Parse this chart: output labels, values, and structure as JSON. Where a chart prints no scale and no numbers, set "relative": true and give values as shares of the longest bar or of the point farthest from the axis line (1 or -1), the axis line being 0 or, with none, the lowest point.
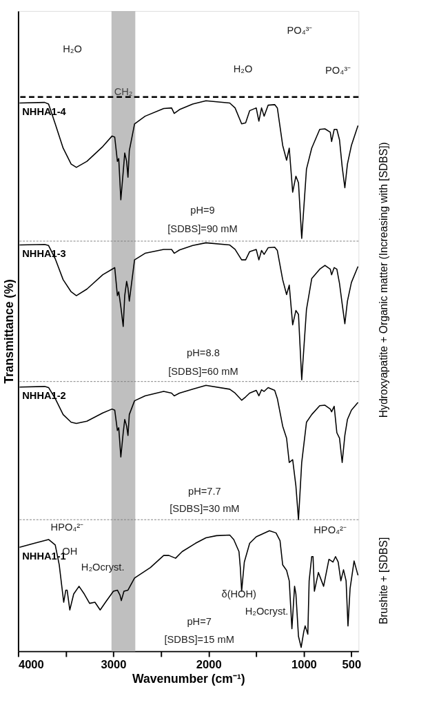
{
  "chart_data": {
    "type": "line",
    "relative": true,
    "xlabel": "Wavenumber (cm⁻¹)",
    "ylabel": "Transmittance (%)",
    "xlim": [
      4000,
      425
    ],
    "xticks": [
      4000,
      {
        "value": 3500,
        "label": null
      },
      3000,
      {
        "value": 2500,
        "label": null
      },
      2000,
      {
        "value": 1500,
        "label": null
      },
      1000,
      500
    ],
    "tick_labels": "x",
    "grid": false,
    "legend": false,
    "marker": "none",
    "line_style": "solid",
    "series": [
      {
        "name": "NHHA1-4",
        "color": "#000000",
        "x": [
          3986,
          3722,
          3681,
          3611,
          3528,
          3444,
          3389,
          3278,
          3111,
          3014,
          2986,
          2958,
          2944,
          2922,
          2897,
          2881,
          2861,
          2847,
          2833,
          2778,
          2667,
          2472,
          2389,
          2361,
          2306,
          2167,
          2028,
          1778,
          1722,
          1653,
          1611,
          1569,
          1500,
          1472,
          1444,
          1417,
          1375,
          1306,
          1278,
          1222,
          1181,
          1153,
          1117,
          1083,
          1056,
          1022,
          972,
          917,
          833,
          778,
          722,
          708,
          681,
          653,
          625,
          597,
          569,
          542,
          500,
          431
        ],
        "values": [
          0.996,
          0.997,
          0.994,
          0.958,
          0.914,
          0.885,
          0.879,
          0.89,
          0.917,
          0.936,
          0.934,
          0.89,
          0.895,
          0.82,
          0.871,
          0.905,
          0.89,
          0.861,
          0.909,
          0.958,
          0.972,
          0.986,
          0.987,
          0.977,
          0.984,
          0.994,
          1.0,
          0.996,
          0.987,
          0.958,
          0.96,
          0.982,
          0.987,
          0.963,
          0.987,
          0.972,
          0.992,
          0.993,
          0.987,
          0.919,
          0.892,
          0.914,
          0.834,
          0.863,
          0.851,
          0.75,
          0.876,
          0.914,
          0.948,
          0.949,
          0.943,
          0.926,
          0.948,
          0.948,
          0.929,
          0.88,
          0.842,
          0.885,
          0.919,
          0.955
        ]
      },
      {
        "name": "NHHA1-3",
        "color": "#000000",
        "x": [
          3986,
          3722,
          3681,
          3611,
          3528,
          3444,
          3389,
          3278,
          3111,
          3014,
          2986,
          2958,
          2944,
          2922,
          2897,
          2881,
          2861,
          2847,
          2833,
          2778,
          2667,
          2472,
          2389,
          2361,
          2306,
          2167,
          2028,
          1778,
          1722,
          1653,
          1611,
          1569,
          1500,
          1472,
          1444,
          1417,
          1375,
          1306,
          1278,
          1222,
          1181,
          1153,
          1117,
          1083,
          1056,
          1022,
          972,
          917,
          833,
          778,
          722,
          708,
          681,
          653,
          625,
          597,
          569,
          542,
          500,
          431
        ],
        "values": [
          0.738,
          0.739,
          0.737,
          0.713,
          0.675,
          0.653,
          0.646,
          0.658,
          0.684,
          0.694,
          0.697,
          0.646,
          0.653,
          0.626,
          0.59,
          0.646,
          0.672,
          0.66,
          0.636,
          0.711,
          0.723,
          0.73,
          0.73,
          0.723,
          0.729,
          0.737,
          0.742,
          0.738,
          0.73,
          0.711,
          0.711,
          0.726,
          0.73,
          0.711,
          0.728,
          0.721,
          0.733,
          0.734,
          0.728,
          0.675,
          0.648,
          0.665,
          0.593,
          0.619,
          0.612,
          0.493,
          0.621,
          0.677,
          0.694,
          0.701,
          0.694,
          0.684,
          0.697,
          0.694,
          0.668,
          0.631,
          0.595,
          0.636,
          0.67,
          0.699
        ]
      },
      {
        "name": "NHHA1-2",
        "color": "#000000",
        "x": [
          3986,
          3722,
          3681,
          3611,
          3528,
          3444,
          3389,
          3278,
          3111,
          3014,
          2986,
          2958,
          2944,
          2922,
          2897,
          2881,
          2861,
          2847,
          2833,
          2778,
          2667,
          2472,
          2389,
          2361,
          2306,
          2167,
          2028,
          1778,
          1722,
          1653,
          1611,
          1569,
          1500,
          1472,
          1444,
          1417,
          1375,
          1306,
          1278,
          1222,
          1181,
          1153,
          1117,
          1083,
          1056,
          1022,
          972,
          917,
          833,
          778,
          722,
          708,
          681,
          653,
          625,
          597,
          569,
          542,
          500,
          431
        ],
        "values": [
          0.48,
          0.481,
          0.479,
          0.459,
          0.43,
          0.416,
          0.414,
          0.418,
          0.433,
          0.44,
          0.438,
          0.401,
          0.406,
          0.353,
          0.397,
          0.421,
          0.409,
          0.392,
          0.43,
          0.455,
          0.464,
          0.472,
          0.469,
          0.464,
          0.469,
          0.476,
          0.483,
          0.476,
          0.469,
          0.456,
          0.462,
          0.469,
          0.474,
          0.464,
          0.475,
          0.472,
          0.479,
          0.474,
          0.459,
          0.409,
          0.387,
          0.343,
          0.348,
          0.3,
          0.239,
          0.343,
          0.416,
          0.43,
          0.446,
          0.447,
          0.44,
          0.435,
          0.445,
          0.397,
          0.387,
          0.343,
          0.392,
          0.421,
          0.438,
          0.452
        ]
      },
      {
        "name": "NHHA1-1",
        "color": "#000000",
        "x": [
          3986,
          3833,
          3681,
          3611,
          3569,
          3542,
          3522,
          3500,
          3486,
          3458,
          3417,
          3361,
          3306,
          3250,
          3194,
          3139,
          3083,
          3000,
          2958,
          2931,
          2917,
          2889,
          2847,
          2778,
          2611,
          2472,
          2417,
          2347,
          2278,
          2139,
          2028,
          1917,
          1778,
          1736,
          1681,
          1667,
          1653,
          1625,
          1569,
          1500,
          1361,
          1292,
          1250,
          1222,
          1181,
          1153,
          1125,
          1097,
          1083,
          1056,
          1028,
          1000,
          986,
          958,
          944,
          917,
          903,
          889,
          847,
          792,
          736,
          694,
          667,
          639,
          611,
          583,
          556,
          536,
          514,
          472,
          431
        ],
        "values": [
          0.189,
          0.196,
          0.203,
          0.193,
          0.157,
          0.118,
          0.089,
          0.111,
          0.111,
          0.075,
          0.104,
          0.118,
          0.104,
          0.087,
          0.089,
          0.075,
          0.089,
          0.109,
          0.111,
          0.102,
          0.092,
          0.109,
          0.111,
          0.133,
          0.152,
          0.174,
          0.174,
          0.169,
          0.181,
          0.196,
          0.206,
          0.21,
          0.211,
          0.203,
          0.181,
          0.152,
          0.109,
          0.162,
          0.196,
          0.208,
          0.219,
          0.215,
          0.201,
          0.157,
          0.147,
          0.128,
          0.041,
          0.118,
          0.104,
          0.027,
          0.007,
          0.036,
          0.046,
          0.031,
          0.128,
          0.172,
          0.172,
          0.109,
          0.143,
          0.118,
          0.167,
          0.162,
          0.172,
          0.162,
          0.128,
          0.148,
          0.128,
          0.046,
          0.114,
          0.164,
          0.138
        ]
      }
    ],
    "bands": [
      {
        "axis": "x",
        "from": 3020,
        "to": 2770,
        "label": "CH₂",
        "color": "#bfbfbf"
      }
    ],
    "ref_lines": [
      {
        "axis": "y",
        "value": 1.007,
        "label": null,
        "color": "#000000",
        "line_style": "dashed"
      },
      {
        "axis": "y",
        "value": 0.745,
        "label": null,
        "color": "#7f7f7f",
        "line_style": "dotted"
      },
      {
        "axis": "y",
        "value": 0.49,
        "label": null,
        "color": "#7f7f7f",
        "line_style": "dotted"
      },
      {
        "axis": "y",
        "value": 0.239,
        "label": null,
        "color": "#7f7f7f",
        "line_style": "dotted"
      }
    ],
    "annotations": [
      "H₂O",
      "H₂O",
      "PO₄³⁻",
      "PO₄³⁻",
      "pH=9",
      "[SDBS]=90 mM",
      "pH=8.8",
      "[SDBS]=60 mM",
      "pH=7.7",
      "[SDBS]=30 mM",
      "pH=7",
      "[SDBS]=15 mM",
      "HPO₄²⁻",
      "OH",
      "H₂Ocryst.",
      "δ(HOH)",
      "H₂Ocryst.",
      "HPO₄²⁻",
      "Hydroxyapatite + Organic matter (Increasing with [SDBS])",
      "Brushite + [SDBS]"
    ]
  }
}
